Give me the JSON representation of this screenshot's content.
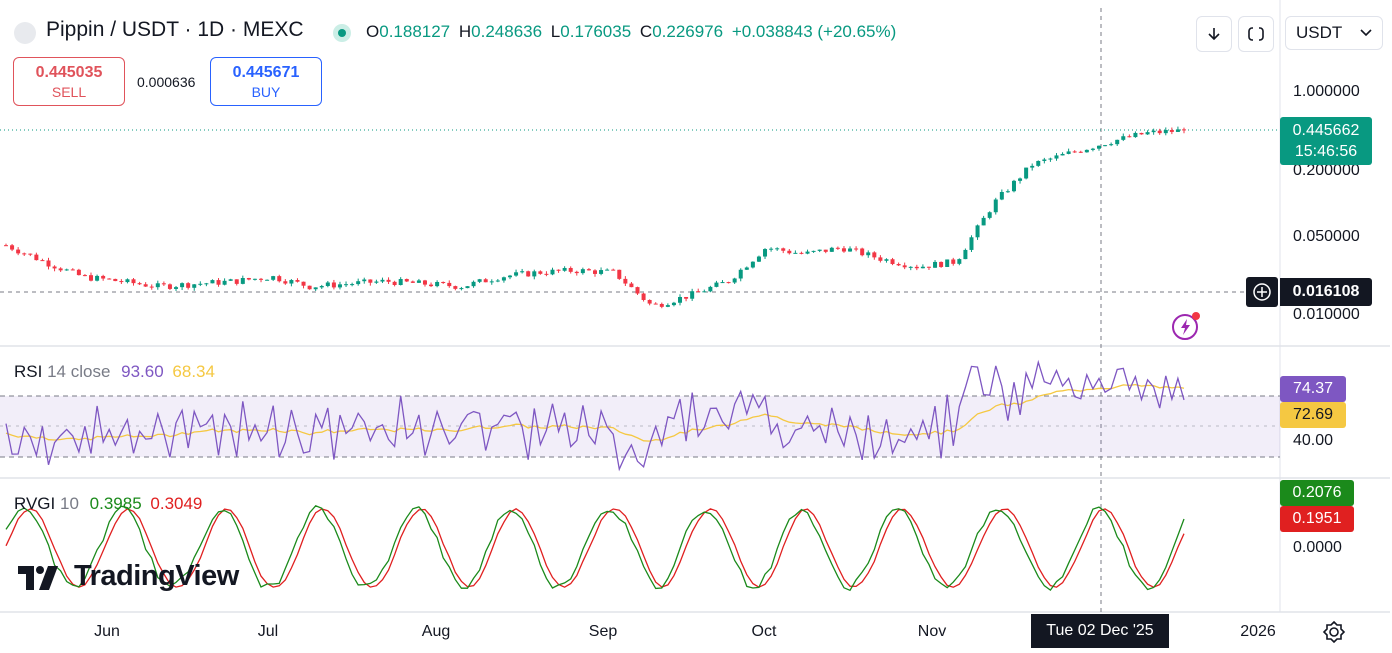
{
  "header": {
    "symbol": "Pippin / USDT · 1D · MEXC",
    "open_label": "O",
    "open": "0.188127",
    "high_label": "H",
    "high": "0.248636",
    "low_label": "L",
    "low": "0.176035",
    "close_label": "C",
    "close": "0.226976",
    "change": "+0.038843 (+20.65%)",
    "currency_select": "USDT",
    "icons": [
      "download-icon",
      "fullscreen-icon",
      "chevron-down-icon"
    ]
  },
  "trade": {
    "sell_price": "0.445035",
    "sell_label": "SELL",
    "spread": "0.000636",
    "buy_price": "0.445671",
    "buy_label": "BUY"
  },
  "price_axis": {
    "ticks": [
      "1.000000",
      "0.200000",
      "0.050000",
      "0.010000"
    ],
    "last_price": "0.445662",
    "countdown": "15:46:56",
    "crosshair_price": "0.016108"
  },
  "rsi": {
    "name": "RSI",
    "params": "14 close",
    "value": "93.60",
    "ma_value": "68.34",
    "tag_rsi": "74.37",
    "tag_ma": "72.69",
    "axis_tick": "40.00"
  },
  "rvgi": {
    "name": "RVGI",
    "params": "10",
    "value": "0.3985",
    "signal": "0.3049",
    "tag_value": "0.2076",
    "tag_signal": "0.1951",
    "axis_tick": "0.0000"
  },
  "time_axis": {
    "labels": [
      "Jun",
      "Jul",
      "Aug",
      "Sep",
      "Oct",
      "Nov",
      "2026"
    ],
    "crosshair_date": "Tue 02 Dec '25"
  },
  "branding": {
    "logo_text": "TradingView"
  },
  "colors": {
    "up": "#089981",
    "down": "#f23645",
    "rsi_line": "#7e57c2",
    "rsi_ma": "#f5c842",
    "rvgi": "#1b8a1b",
    "rvgi_signal": "#e02020",
    "sell": "#e0535b",
    "buy": "#2962ff"
  },
  "chart_data": [
    {
      "type": "candlestick",
      "scale": "log",
      "y_ticks": [
        1.0,
        0.2,
        0.05,
        0.01
      ],
      "x_months": [
        "Jun",
        "Jul",
        "Aug",
        "Sep",
        "Oct",
        "Nov",
        "Dec"
      ],
      "approx_close_path": [
        0.042,
        0.03,
        0.022,
        0.02,
        0.018,
        0.019,
        0.02,
        0.022,
        0.018,
        0.019,
        0.02,
        0.019,
        0.018,
        0.022,
        0.024,
        0.025,
        0.024,
        0.012,
        0.015,
        0.02,
        0.04,
        0.035,
        0.04,
        0.032,
        0.027,
        0.03,
        0.1,
        0.22,
        0.28,
        0.35,
        0.42,
        0.445662
      ]
    },
    {
      "type": "line",
      "name": "RSI 14 close",
      "series": [
        {
          "name": "RSI",
          "last": 93.6
        },
        {
          "name": "MA",
          "last": 68.34
        }
      ]
    },
    {
      "type": "line",
      "name": "RVGI 10",
      "series": [
        {
          "name": "RVGI",
          "last": 0.3985
        },
        {
          "name": "Signal",
          "last": 0.3049
        }
      ]
    }
  ]
}
